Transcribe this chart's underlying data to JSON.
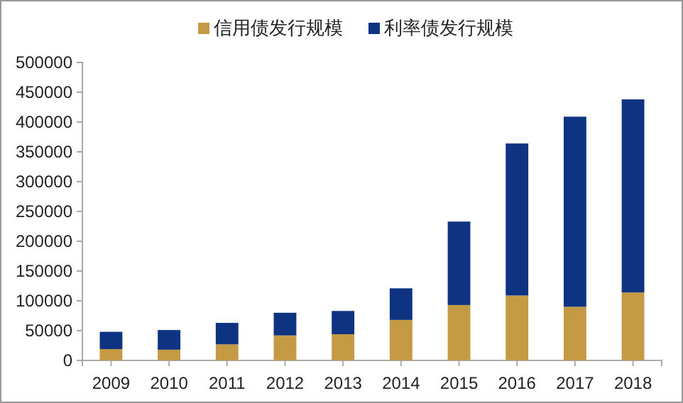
{
  "chart_data": {
    "type": "bar",
    "stacked": true,
    "categories": [
      "2009",
      "2010",
      "2011",
      "2012",
      "2013",
      "2014",
      "2015",
      "2016",
      "2017",
      "2018"
    ],
    "series": [
      {
        "name": "信用债发行规模",
        "color": "#c49a45",
        "values": [
          19000,
          18000,
          27000,
          42000,
          44000,
          68000,
          93000,
          109000,
          90000,
          114000
        ]
      },
      {
        "name": "利率债发行规模",
        "color": "#0d3381",
        "values": [
          29000,
          33000,
          36000,
          38000,
          39000,
          53000,
          140000,
          255000,
          319000,
          324000
        ]
      }
    ],
    "ylim": [
      0,
      500000
    ],
    "yticks": [
      0,
      50000,
      100000,
      150000,
      200000,
      250000,
      300000,
      350000,
      400000,
      450000,
      500000
    ],
    "grid": false,
    "legend": "top"
  }
}
